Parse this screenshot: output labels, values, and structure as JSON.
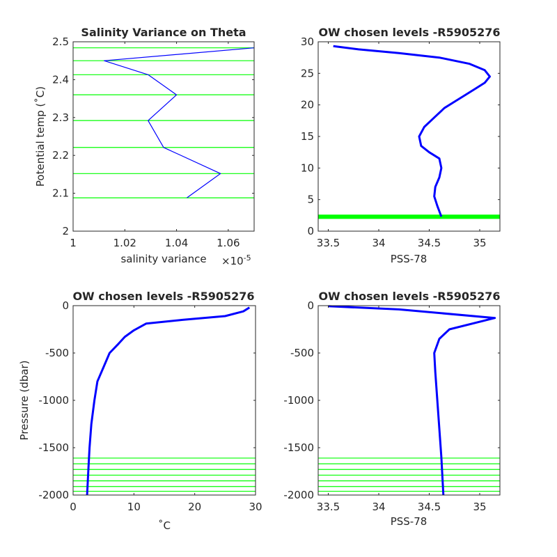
{
  "chart_data": [
    {
      "type": "line",
      "title": "Salinity Variance on Theta",
      "xlabel": "salinity variance",
      "x_exponent_label": "×10",
      "x_exponent_power": "-5",
      "ylabel": "Potential temp (˚C)",
      "xlim": [
        1.0,
        1.07
      ],
      "ylim": [
        2.0,
        2.5
      ],
      "xticks": [
        "1",
        "1.02",
        "1.04",
        "1.06"
      ],
      "xtick_values": [
        1.0,
        1.02,
        1.04,
        1.06
      ],
      "yticks": [
        "2",
        "2.1",
        "2.2",
        "2.3",
        "2.4",
        "2.5"
      ],
      "ytick_values": [
        2.0,
        2.1,
        2.2,
        2.3,
        2.4,
        2.5
      ],
      "series": [
        {
          "color": "#0000ff",
          "x": [
            1.044,
            1.057,
            1.035,
            1.029,
            1.04,
            1.029,
            1.012,
            1.07
          ],
          "y": [
            2.088,
            2.152,
            2.221,
            2.292,
            2.36,
            2.413,
            2.45,
            2.484
          ]
        }
      ],
      "hlines": {
        "color": "#00ff00",
        "values": [
          2.088,
          2.152,
          2.221,
          2.292,
          2.36,
          2.413,
          2.45,
          2.484
        ]
      }
    },
    {
      "type": "line",
      "title": "OW chosen levels -R5905276",
      "xlabel": "PSS-78",
      "ylabel": "",
      "xlim": [
        33.4,
        35.2
      ],
      "ylim": [
        0,
        30
      ],
      "xticks": [
        "33.5",
        "34",
        "34.5",
        "35"
      ],
      "xtick_values": [
        33.5,
        34.0,
        34.5,
        35.0
      ],
      "yticks": [
        "0",
        "5",
        "10",
        "15",
        "20",
        "25",
        "30"
      ],
      "ytick_values": [
        0,
        5,
        10,
        15,
        20,
        25,
        30
      ],
      "series": [
        {
          "color": "#0000ff",
          "x": [
            34.62,
            34.58,
            34.55,
            34.56,
            34.6,
            34.62,
            34.6,
            34.5,
            34.42,
            34.4,
            34.45,
            34.55,
            34.65,
            34.75,
            34.85,
            34.95,
            35.05,
            35.1,
            35.05,
            34.9,
            34.6,
            34.2,
            33.8,
            33.55
          ],
          "y": [
            2.3,
            4.0,
            5.5,
            7.0,
            8.5,
            10.0,
            11.5,
            12.5,
            13.5,
            15.0,
            16.5,
            18.0,
            19.5,
            20.5,
            21.5,
            22.5,
            23.5,
            24.5,
            25.5,
            26.5,
            27.5,
            28.2,
            28.8,
            29.3
          ]
        }
      ],
      "hlines": {
        "color": "#00ff00",
        "values": [
          2.088,
          2.152,
          2.221,
          2.292,
          2.36,
          2.413,
          2.45,
          2.484
        ]
      }
    },
    {
      "type": "line",
      "title": "OW chosen levels -R5905276",
      "xlabel": "˚C",
      "ylabel": "Pressure (dbar)",
      "xlim": [
        0,
        30
      ],
      "ylim": [
        -2000,
        0
      ],
      "xticks": [
        "0",
        "10",
        "20",
        "30"
      ],
      "xtick_values": [
        0,
        10,
        20,
        30
      ],
      "yticks": [
        "0",
        "-500",
        "-1000",
        "-1500",
        "-2000"
      ],
      "ytick_values": [
        0,
        -500,
        -1000,
        -1500,
        -2000
      ],
      "series": [
        {
          "color": "#0000ff",
          "x": [
            29.0,
            28.0,
            25.0,
            18.0,
            12.0,
            10.0,
            8.5,
            7.5,
            6.0,
            5.0,
            4.0,
            3.5,
            3.0,
            2.7,
            2.5,
            2.3
          ],
          "y": [
            -20,
            -60,
            -110,
            -150,
            -190,
            -260,
            -330,
            -400,
            -500,
            -650,
            -800,
            -1000,
            -1250,
            -1500,
            -1750,
            -2000
          ]
        }
      ],
      "hlines": {
        "color": "#00ff00",
        "values": [
          -1610,
          -1670,
          -1730,
          -1790,
          -1850,
          -1910,
          -1960
        ]
      }
    },
    {
      "type": "line",
      "title": "OW chosen levels -R5905276",
      "xlabel": "PSS-78",
      "ylabel": "",
      "xlim": [
        33.4,
        35.2
      ],
      "ylim": [
        -2000,
        0
      ],
      "xticks": [
        "33.5",
        "34",
        "34.5",
        "35"
      ],
      "xtick_values": [
        33.5,
        34.0,
        34.5,
        35.0
      ],
      "yticks": [
        "0",
        "-500",
        "-1000",
        "-1500",
        "-2000"
      ],
      "ytick_values": [
        0,
        -500,
        -1000,
        -1500,
        -2000
      ],
      "series": [
        {
          "color": "#0000ff",
          "x": [
            33.5,
            34.2,
            35.15,
            34.7,
            34.6,
            34.55,
            34.56,
            34.58,
            34.6,
            34.62,
            34.64
          ],
          "y": [
            -5,
            -40,
            -130,
            -250,
            -350,
            -500,
            -700,
            -1000,
            -1300,
            -1600,
            -2000
          ]
        }
      ],
      "hlines": {
        "color": "#00ff00",
        "values": [
          -1610,
          -1670,
          -1730,
          -1790,
          -1850,
          -1910,
          -1960
        ]
      }
    }
  ]
}
